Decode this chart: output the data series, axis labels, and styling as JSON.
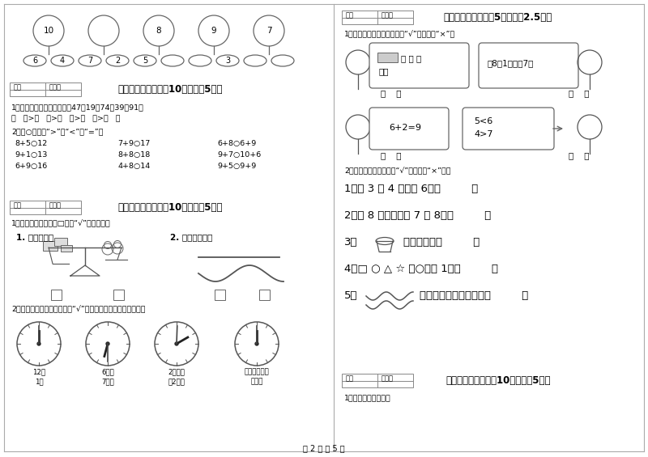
{
  "bg_color": "#ffffff",
  "page_num": "第 2 页 共 5 页",
  "top_numbers": [
    "10",
    "",
    "8",
    "9",
    "7"
  ],
  "bottom_pairs": [
    [
      "6",
      "4"
    ],
    [
      "7",
      "2"
    ],
    [
      "5",
      ""
    ],
    [
      "",
      "3"
    ],
    [
      "",
      ""
    ]
  ],
  "s3_title": "三、我会比（本题入10分，每题5分）",
  "s3_q1": "1、从大到小排列下面的数：47，19，74，39，91。",
  "s3_q1b": "（   ）>（   ）>（   ）>（   ）>（   ）",
  "s3_q2": "2、在○里填上“>”、“<”或“=”。",
  "s3_math": [
    [
      "8+5○12",
      "7+9○17",
      "6+8○6+9"
    ],
    [
      "9+1○13",
      "8+8○18",
      "9+7○10+6"
    ],
    [
      "6+9○16",
      "4+8○14",
      "9+5○9+9"
    ]
  ],
  "s4_title": "四、选一选（本题入10分，每题5分）",
  "s4_q1": "1、在正确答案下面的□里画“√”，选一选。",
  "s4_q1a": "1. 谁重一些？",
  "s4_q1b": "2. 哪根长一些？",
  "s4_q2": "2、我能在正确的时间下面画“√”，并能正确画出时针和分针。",
  "clock_labels_top": [
    "12时",
    "6时半",
    "2时刚过",
    "回上你吃午饭"
  ],
  "clock_labels_bottom": [
    "1时",
    "7时半",
    "快2时了",
    "的时间"
  ],
  "s5_title": "五、对与错（本题共5分，每题2.5分）",
  "s5_q1": "1、他们说的话对吗？对的打“√”，错的打“×”。",
  "s5_q2": "2、小法官判案（对的打“√”，错的打“×”）。",
  "q2_items": [
    "1、比 3 多 4 的数是 6。（         ）",
    "2、与 8 相邻的数是 7 和 8。（         ）",
    "4、□ ○ △ ☆ ，○排第 1。（         ）",
    "5、          这两根绳子不一样长。（         ）"
  ],
  "s6_title": "六、数一数（本题入10分，每题5分）",
  "s6_q1": "1、数一数，分一分。"
}
